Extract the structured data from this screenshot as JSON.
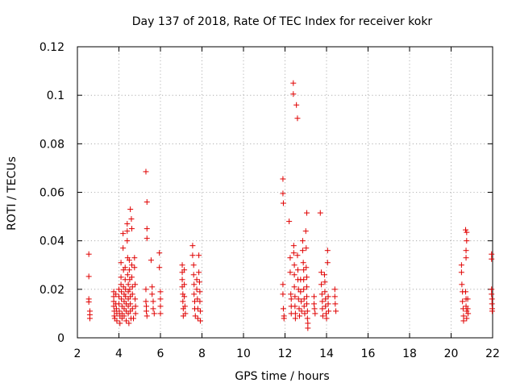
{
  "chart_data": {
    "type": "scatter",
    "title": "Day 137 of 2018, Rate Of TEC Index for receiver kokr",
    "xlabel": "GPS time / hours",
    "ylabel": "ROTI / TECUs",
    "xlim": [
      2,
      22
    ],
    "ylim": [
      0,
      0.12
    ],
    "xticks": [
      2,
      4,
      6,
      8,
      10,
      12,
      14,
      16,
      18,
      20,
      22
    ],
    "yticks": [
      0,
      0.02,
      0.04,
      0.06,
      0.08,
      0.1,
      0.12
    ],
    "xtick_labels": [
      "2",
      "4",
      "6",
      "8",
      "10",
      "12",
      "14",
      "16",
      "18",
      "20",
      "22"
    ],
    "ytick_labels": [
      "0",
      "0.02",
      "0.04",
      "0.06",
      "0.08",
      "0.1",
      "0.12"
    ],
    "grid": true,
    "marker": "+",
    "marker_color": "#e00000",
    "series": [
      {
        "name": "ROTI",
        "points": [
          [
            2.55,
            0.0345
          ],
          [
            2.55,
            0.0253
          ],
          [
            2.55,
            0.016
          ],
          [
            2.55,
            0.0148
          ],
          [
            2.6,
            0.011
          ],
          [
            2.6,
            0.0095
          ],
          [
            2.6,
            0.008
          ],
          [
            3.75,
            0.019
          ],
          [
            3.75,
            0.017
          ],
          [
            3.75,
            0.015
          ],
          [
            3.75,
            0.013
          ],
          [
            3.78,
            0.011
          ],
          [
            3.78,
            0.009
          ],
          [
            3.8,
            0.008
          ],
          [
            3.85,
            0.018
          ],
          [
            3.85,
            0.014
          ],
          [
            3.88,
            0.012
          ],
          [
            3.9,
            0.01
          ],
          [
            3.9,
            0.007
          ],
          [
            4.0,
            0.02
          ],
          [
            4.0,
            0.017
          ],
          [
            4.0,
            0.014
          ],
          [
            4.02,
            0.011
          ],
          [
            4.05,
            0.009
          ],
          [
            4.05,
            0.006
          ],
          [
            4.1,
            0.031
          ],
          [
            4.1,
            0.025
          ],
          [
            4.1,
            0.022
          ],
          [
            4.12,
            0.019
          ],
          [
            4.12,
            0.016
          ],
          [
            4.15,
            0.013
          ],
          [
            4.15,
            0.01
          ],
          [
            4.15,
            0.008
          ],
          [
            4.2,
            0.043
          ],
          [
            4.2,
            0.037
          ],
          [
            4.22,
            0.028
          ],
          [
            4.22,
            0.021
          ],
          [
            4.25,
            0.018
          ],
          [
            4.25,
            0.015
          ],
          [
            4.25,
            0.012
          ],
          [
            4.25,
            0.009
          ],
          [
            4.3,
            0.029
          ],
          [
            4.3,
            0.024
          ],
          [
            4.32,
            0.02
          ],
          [
            4.32,
            0.017
          ],
          [
            4.35,
            0.014
          ],
          [
            4.35,
            0.011
          ],
          [
            4.35,
            0.007
          ],
          [
            4.4,
            0.047
          ],
          [
            4.4,
            0.044
          ],
          [
            4.4,
            0.04
          ],
          [
            4.42,
            0.033
          ],
          [
            4.42,
            0.026
          ],
          [
            4.45,
            0.022
          ],
          [
            4.45,
            0.019
          ],
          [
            4.45,
            0.016
          ],
          [
            4.45,
            0.013
          ],
          [
            4.45,
            0.01
          ],
          [
            4.48,
            0.006
          ],
          [
            4.5,
            0.032
          ],
          [
            4.5,
            0.028
          ],
          [
            4.52,
            0.024
          ],
          [
            4.52,
            0.02
          ],
          [
            4.55,
            0.017
          ],
          [
            4.55,
            0.014
          ],
          [
            4.55,
            0.011
          ],
          [
            4.58,
            0.008
          ],
          [
            4.55,
            0.053
          ],
          [
            4.6,
            0.049
          ],
          [
            4.62,
            0.045
          ],
          [
            4.62,
            0.03
          ],
          [
            4.62,
            0.025
          ],
          [
            4.65,
            0.021
          ],
          [
            4.65,
            0.018
          ],
          [
            4.65,
            0.012
          ],
          [
            4.7,
            0.008
          ],
          [
            4.75,
            0.033
          ],
          [
            4.75,
            0.029
          ],
          [
            4.78,
            0.022
          ],
          [
            4.78,
            0.016
          ],
          [
            4.8,
            0.013
          ],
          [
            4.8,
            0.01
          ],
          [
            5.3,
            0.0685
          ],
          [
            5.35,
            0.056
          ],
          [
            5.35,
            0.045
          ],
          [
            5.35,
            0.041
          ],
          [
            5.3,
            0.02
          ],
          [
            5.3,
            0.015
          ],
          [
            5.32,
            0.013
          ],
          [
            5.32,
            0.011
          ],
          [
            5.35,
            0.009
          ],
          [
            5.55,
            0.032
          ],
          [
            5.6,
            0.021
          ],
          [
            5.6,
            0.018
          ],
          [
            5.65,
            0.015
          ],
          [
            5.65,
            0.012
          ],
          [
            5.7,
            0.01
          ],
          [
            5.95,
            0.035
          ],
          [
            5.95,
            0.029
          ],
          [
            6.0,
            0.019
          ],
          [
            6.0,
            0.016
          ],
          [
            6.0,
            0.013
          ],
          [
            6.0,
            0.01
          ],
          [
            7.05,
            0.03
          ],
          [
            7.05,
            0.027
          ],
          [
            7.05,
            0.024
          ],
          [
            7.05,
            0.021
          ],
          [
            7.08,
            0.018
          ],
          [
            7.08,
            0.015
          ],
          [
            7.1,
            0.012
          ],
          [
            7.1,
            0.009
          ],
          [
            7.15,
            0.028
          ],
          [
            7.15,
            0.022
          ],
          [
            7.15,
            0.017
          ],
          [
            7.18,
            0.013
          ],
          [
            7.2,
            0.01
          ],
          [
            7.55,
            0.038
          ],
          [
            7.55,
            0.034
          ],
          [
            7.6,
            0.03
          ],
          [
            7.6,
            0.026
          ],
          [
            7.62,
            0.022
          ],
          [
            7.62,
            0.018
          ],
          [
            7.65,
            0.015
          ],
          [
            7.65,
            0.012
          ],
          [
            7.68,
            0.009
          ],
          [
            7.75,
            0.024
          ],
          [
            7.75,
            0.02
          ],
          [
            7.78,
            0.016
          ],
          [
            7.8,
            0.012
          ],
          [
            7.8,
            0.008
          ],
          [
            7.85,
            0.034
          ],
          [
            7.85,
            0.027
          ],
          [
            7.88,
            0.023
          ],
          [
            7.9,
            0.019
          ],
          [
            7.9,
            0.015
          ],
          [
            7.92,
            0.011
          ],
          [
            7.92,
            0.007
          ],
          [
            11.9,
            0.0655
          ],
          [
            11.9,
            0.0595
          ],
          [
            11.92,
            0.0555
          ],
          [
            11.9,
            0.022
          ],
          [
            11.9,
            0.018
          ],
          [
            11.92,
            0.012
          ],
          [
            11.95,
            0.009
          ],
          [
            11.95,
            0.008
          ],
          [
            12.2,
            0.048
          ],
          [
            12.25,
            0.033
          ],
          [
            12.25,
            0.027
          ],
          [
            12.28,
            0.018
          ],
          [
            12.3,
            0.016
          ],
          [
            12.3,
            0.013
          ],
          [
            12.3,
            0.01
          ],
          [
            12.4,
            0.105
          ],
          [
            12.4,
            0.1005
          ],
          [
            12.42,
            0.038
          ],
          [
            12.42,
            0.035
          ],
          [
            12.45,
            0.03
          ],
          [
            12.45,
            0.026
          ],
          [
            12.45,
            0.021
          ],
          [
            12.48,
            0.017
          ],
          [
            12.48,
            0.013
          ],
          [
            12.5,
            0.01
          ],
          [
            12.5,
            0.008
          ],
          [
            12.55,
            0.096
          ],
          [
            12.6,
            0.0905
          ],
          [
            12.6,
            0.034
          ],
          [
            12.62,
            0.028
          ],
          [
            12.62,
            0.024
          ],
          [
            12.65,
            0.02
          ],
          [
            12.65,
            0.016
          ],
          [
            12.68,
            0.012
          ],
          [
            12.7,
            0.009
          ],
          [
            12.75,
            0.024
          ],
          [
            12.75,
            0.019
          ],
          [
            12.78,
            0.015
          ],
          [
            12.8,
            0.011
          ],
          [
            12.85,
            0.04
          ],
          [
            12.85,
            0.036
          ],
          [
            12.88,
            0.031
          ],
          [
            12.9,
            0.028
          ],
          [
            12.9,
            0.024
          ],
          [
            12.9,
            0.02
          ],
          [
            12.92,
            0.016
          ],
          [
            12.92,
            0.013
          ],
          [
            12.95,
            0.01
          ],
          [
            13.0,
            0.044
          ],
          [
            13.02,
            0.037
          ],
          [
            13.02,
            0.029
          ],
          [
            13.05,
            0.025
          ],
          [
            13.05,
            0.021
          ],
          [
            13.05,
            0.017
          ],
          [
            13.05,
            0.014
          ],
          [
            13.08,
            0.011
          ],
          [
            13.08,
            0.008
          ],
          [
            13.1,
            0.006
          ],
          [
            13.1,
            0.004
          ],
          [
            13.05,
            0.0515
          ],
          [
            13.4,
            0.017
          ],
          [
            13.4,
            0.014
          ],
          [
            13.42,
            0.012
          ],
          [
            13.45,
            0.01
          ],
          [
            13.7,
            0.0515
          ],
          [
            13.75,
            0.027
          ],
          [
            13.75,
            0.022
          ],
          [
            13.78,
            0.018
          ],
          [
            13.8,
            0.015
          ],
          [
            13.8,
            0.012
          ],
          [
            13.82,
            0.009
          ],
          [
            13.9,
            0.026
          ],
          [
            13.92,
            0.023
          ],
          [
            13.92,
            0.019
          ],
          [
            13.95,
            0.016
          ],
          [
            13.95,
            0.013
          ],
          [
            13.98,
            0.01
          ],
          [
            14.0,
            0.008
          ],
          [
            14.05,
            0.036
          ],
          [
            14.05,
            0.031
          ],
          [
            14.08,
            0.017
          ],
          [
            14.08,
            0.014
          ],
          [
            14.1,
            0.011
          ],
          [
            14.4,
            0.02
          ],
          [
            14.4,
            0.017
          ],
          [
            14.42,
            0.014
          ],
          [
            14.45,
            0.011
          ],
          [
            20.5,
            0.03
          ],
          [
            20.5,
            0.027
          ],
          [
            20.52,
            0.022
          ],
          [
            20.55,
            0.019
          ],
          [
            20.55,
            0.015
          ],
          [
            20.58,
            0.012
          ],
          [
            20.6,
            0.009
          ],
          [
            20.6,
            0.007
          ],
          [
            20.7,
            0.019
          ],
          [
            20.72,
            0.016
          ],
          [
            20.72,
            0.013
          ],
          [
            20.75,
            0.011
          ],
          [
            20.75,
            0.008
          ],
          [
            20.7,
            0.0445
          ],
          [
            20.75,
            0.0435
          ],
          [
            20.75,
            0.04
          ],
          [
            20.72,
            0.033
          ],
          [
            20.72,
            0.036
          ],
          [
            20.8,
            0.016
          ],
          [
            20.8,
            0.012
          ],
          [
            20.82,
            0.01
          ],
          [
            21.95,
            0.0345
          ],
          [
            21.95,
            0.0325
          ],
          [
            21.95,
            0.02
          ],
          [
            21.95,
            0.018
          ],
          [
            21.97,
            0.016
          ],
          [
            21.97,
            0.014
          ],
          [
            21.98,
            0.012
          ],
          [
            21.98,
            0.011
          ]
        ]
      }
    ]
  }
}
